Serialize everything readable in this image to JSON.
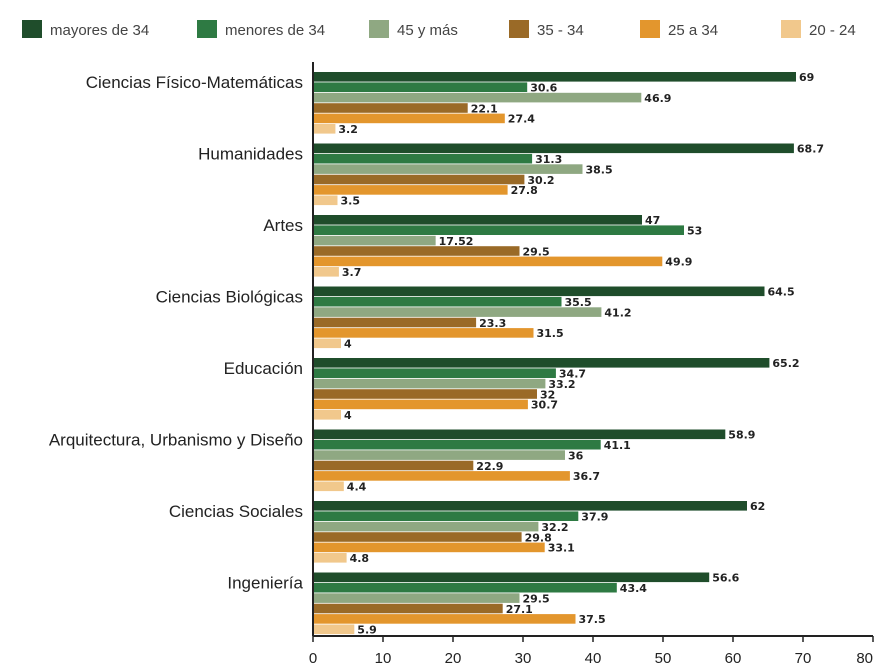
{
  "chart_data": {
    "type": "bar",
    "orientation": "horizontal",
    "title": "",
    "xlabel": "",
    "ylabel": "",
    "xlim": [
      0,
      80
    ],
    "ticks": [
      0,
      10,
      20,
      30,
      40,
      50,
      60,
      70,
      80
    ],
    "legend_position": "top",
    "grid": false,
    "categories": [
      "Ciencias Físico-Matemáticas",
      "Humanidades",
      "Artes",
      "Ciencias Biológicas",
      "Educación",
      "Arquitectura, Urbanismo y Diseño",
      "Ciencias Sociales",
      "Ingeniería"
    ],
    "series": [
      {
        "name": "mayores de 34",
        "color": "#1f4d2b",
        "values": [
          69,
          68.7,
          47,
          64.5,
          65.2,
          58.9,
          62,
          56.6
        ],
        "labels": [
          "69",
          "68.7",
          "47",
          "64.5",
          "65.2",
          "58.9",
          "62",
          "56.6"
        ]
      },
      {
        "name": "menores de 34",
        "color": "#2e7a43",
        "values": [
          30.6,
          31.3,
          53,
          35.5,
          34.7,
          41.1,
          37.9,
          43.4
        ],
        "labels": [
          "30.6",
          "31.3",
          "53",
          "35.5",
          "34.7",
          "41.1",
          "37.9",
          "43.4"
        ]
      },
      {
        "name": "45 y más",
        "color": "#8fa882",
        "values": [
          46.9,
          38.5,
          17.52,
          41.2,
          33.2,
          36,
          32.2,
          29.5
        ],
        "labels": [
          "46.9",
          "38.5",
          "17.52",
          "41.2",
          "33.2",
          "36",
          "32.2",
          "29.5"
        ]
      },
      {
        "name": "35 - 34",
        "color": "#9a6a27",
        "values": [
          22.1,
          30.2,
          29.5,
          23.3,
          32,
          22.9,
          29.8,
          27.1
        ],
        "labels": [
          "22.1",
          "30.2",
          "29.5",
          "23.3",
          "32",
          "22.9",
          "29.8",
          "27.1"
        ]
      },
      {
        "name": "25 a 34",
        "color": "#e3962d",
        "values": [
          27.4,
          27.8,
          49.9,
          31.5,
          30.7,
          36.7,
          33.1,
          37.5
        ],
        "labels": [
          "27.4",
          "27.8",
          "49.9",
          "31.5",
          "30.7",
          "36.7",
          "33.1",
          "37.5"
        ]
      },
      {
        "name": "20 - 24",
        "color": "#f1c88c",
        "values": [
          3.2,
          3.5,
          3.7,
          4,
          4,
          4.4,
          4.8,
          5.9
        ],
        "labels": [
          "3.2",
          "3.5",
          "3.7",
          "4",
          "4",
          "4.4",
          "4.8",
          "5.9"
        ]
      }
    ]
  }
}
